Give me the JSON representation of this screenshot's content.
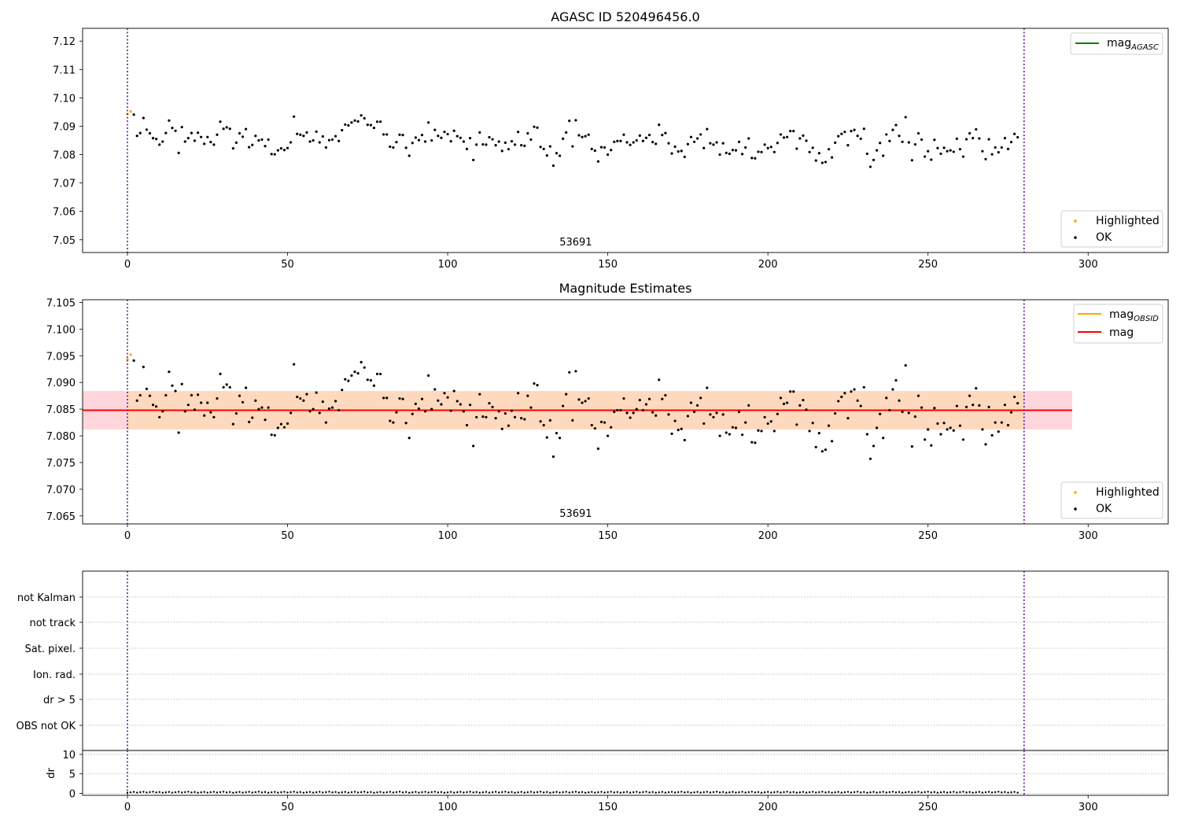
{
  "chart_data": [
    {
      "type": "scatter",
      "title": "AGASC ID 520496456.0",
      "xlim": [
        -14,
        325
      ],
      "ylim": [
        7.0455,
        7.1245
      ],
      "xticks": [
        0,
        50,
        100,
        150,
        200,
        250,
        300
      ],
      "yticks": [
        7.05,
        7.06,
        7.07,
        7.08,
        7.09,
        7.1,
        7.11,
        7.12
      ],
      "obsid_label": "53691",
      "obsid_label_x": 140,
      "vlines": [
        0,
        280
      ],
      "legend_upper": {
        "position": "top-right",
        "entries": [
          {
            "text": "mag",
            "subscript": "AGASC",
            "color": "#008000"
          }
        ]
      },
      "legend_lower": {
        "position": "bottom-right",
        "entries": [
          {
            "text": "Highlighted",
            "color": "#ffa500"
          },
          {
            "text": "OK",
            "color": "#000000"
          }
        ]
      }
    },
    {
      "type": "scatter",
      "title": "Magnitude Estimates",
      "xlim": [
        -14,
        325
      ],
      "ylim": [
        7.0635,
        7.1055
      ],
      "xticks": [
        0,
        50,
        100,
        150,
        200,
        250,
        300
      ],
      "yticks": [
        7.065,
        7.07,
        7.075,
        7.08,
        7.085,
        7.09,
        7.095,
        7.1,
        7.105
      ],
      "mag_mean": 7.0848,
      "mag_band": [
        7.0812,
        7.0884
      ],
      "band_x_range": [
        -14,
        295
      ],
      "obsid_band_x_range": [
        0,
        280
      ],
      "obsid_label": "53691",
      "obsid_label_x": 140,
      "vlines": [
        0,
        280
      ],
      "legend_upper": {
        "position": "top-right",
        "entries": [
          {
            "text": "mag",
            "subscript": "OBSID",
            "color": "#ffa500"
          },
          {
            "text": "mag",
            "color": "#ff0000"
          }
        ]
      },
      "legend_lower": {
        "position": "bottom-right",
        "entries": [
          {
            "text": "Highlighted",
            "color": "#ffa500"
          },
          {
            "text": "OK",
            "color": "#000000"
          }
        ]
      }
    },
    {
      "type": "flags",
      "flag_labels": [
        "not Kalman",
        "not track",
        "Sat. pixel.",
        "Ion. rad.",
        "dr > 5",
        "OBS not OK"
      ],
      "xlim": [
        -14,
        325
      ],
      "vlines": [
        0,
        280
      ]
    },
    {
      "type": "scatter",
      "ylabel": "dr",
      "xlim": [
        -14,
        325
      ],
      "ylim": [
        -0.5,
        11
      ],
      "xticks": [
        0,
        50,
        100,
        150,
        200,
        250,
        300
      ],
      "yticks": [
        0,
        5,
        10
      ],
      "vlines": [
        0,
        280
      ],
      "dr_level": 0.3
    }
  ],
  "mag_series": {
    "highlighted_idx": [
      0,
      1
    ],
    "values": [
      7.0943,
      7.0952,
      7.0941,
      7.0866,
      7.0876,
      7.0929,
      7.0888,
      7.0875,
      7.0858,
      7.0855,
      7.0835,
      7.0846,
      7.0876,
      7.092,
      7.0894,
      7.0884,
      7.0806,
      7.0897,
      7.0846,
      7.0858,
      7.0876,
      7.0849,
      7.0877,
      7.0862,
      7.0838,
      7.0862,
      7.0844,
      7.0835,
      7.087,
      7.0916,
      7.0891,
      7.0896,
      7.0891,
      7.0822,
      7.0842,
      7.0875,
      7.0863,
      7.089,
      7.0826,
      7.0834,
      7.0866,
      7.085,
      7.0853,
      7.083,
      7.0853,
      7.0802,
      7.0801,
      7.0815,
      7.0822,
      7.0816,
      7.0823,
      7.0843,
      7.0934,
      7.0873,
      7.087,
      7.0866,
      7.0878,
      7.0846,
      7.085,
      7.0881,
      7.0843,
      7.0864,
      7.0825,
      7.0851,
      7.0853,
      7.0865,
      7.0848,
      7.0886,
      7.0906,
      7.0903,
      7.0913,
      7.092,
      7.0917,
      7.0938,
      7.0928,
      7.0905,
      7.0904,
      7.0894,
      7.0916,
      7.0916,
      7.0871,
      7.0871,
      7.0828,
      7.0825,
      7.0844,
      7.087,
      7.0869,
      7.0824,
      7.0796,
      7.0841,
      7.086,
      7.0851,
      7.0869,
      7.0846,
      7.0913,
      7.085,
      7.0887,
      7.0866,
      7.0859,
      7.088,
      7.0872,
      7.0847,
      7.0884,
      7.0865,
      7.0859,
      7.0846,
      7.082,
      7.0858,
      7.0781,
      7.0835,
      7.0878,
      7.0836,
      7.0835,
      7.0861,
      7.0854,
      7.0833,
      7.0846,
      7.0813,
      7.0842,
      7.0819,
      7.0847,
      7.0835,
      7.088,
      7.0833,
      7.0831,
      7.0875,
      7.0853,
      7.0898,
      7.0895,
      7.0827,
      7.082,
      7.0797,
      7.0829,
      7.0761,
      7.0805,
      7.0796,
      7.0856,
      7.0878,
      7.0919,
      7.0829,
      7.0921,
      7.0868,
      7.0862,
      7.0865,
      7.087,
      7.082,
      7.0814,
      7.0776,
      7.0826,
      7.0825,
      7.08,
      7.0816,
      7.0845,
      7.0848,
      7.0848,
      7.087,
      7.0843,
      7.0834,
      7.0843,
      7.085,
      7.0867,
      7.0848,
      7.0859,
      7.0869,
      7.0844,
      7.0838,
      7.0905,
      7.0869,
      7.0876,
      7.084,
      7.0804,
      7.0828,
      7.0811,
      7.0813,
      7.0792,
      7.0837,
      7.0862,
      7.0845,
      7.0857,
      7.0871,
      7.0823,
      7.089,
      7.084,
      7.0835,
      7.0843,
      7.08,
      7.084,
      7.0806,
      7.0803,
      7.0816,
      7.0815,
      7.0845,
      7.0802,
      7.0825,
      7.0857,
      7.0788,
      7.0787,
      7.081,
      7.0809,
      7.0835,
      7.0823,
      7.0827,
      7.0809,
      7.0841,
      7.0871,
      7.086,
      7.0862,
      7.0883,
      7.0883,
      7.0821,
      7.0857,
      7.0867,
      7.0849,
      7.0809,
      7.0824,
      7.0779,
      7.0805,
      7.0771,
      7.0774,
      7.0819,
      7.079,
      7.0842,
      7.0865,
      7.0873,
      7.088,
      7.0833,
      7.0883,
      7.0887,
      7.0866,
      7.0856,
      7.0891,
      7.0803,
      7.0757,
      7.0781,
      7.0815,
      7.0841,
      7.0796,
      7.0871,
      7.0848,
      7.0887,
      7.0904,
      7.0866,
      7.0845,
      7.0932,
      7.0843,
      7.078,
      7.0836,
      7.0875,
      7.0853,
      7.0793,
      7.0812,
      7.0782,
      7.0852,
      7.0823,
      7.0803,
      7.0824,
      7.0812,
      7.0815,
      7.081,
      7.0856,
      7.0819,
      7.0793,
      7.0854,
      7.0875,
      7.0858,
      7.0889,
      7.0857,
      7.0812,
      7.0784,
      7.0854,
      7.0801,
      7.0825,
      7.0808,
      7.0825,
      7.0858,
      7.082,
      7.0844,
      7.0873,
      7.0861
    ]
  }
}
